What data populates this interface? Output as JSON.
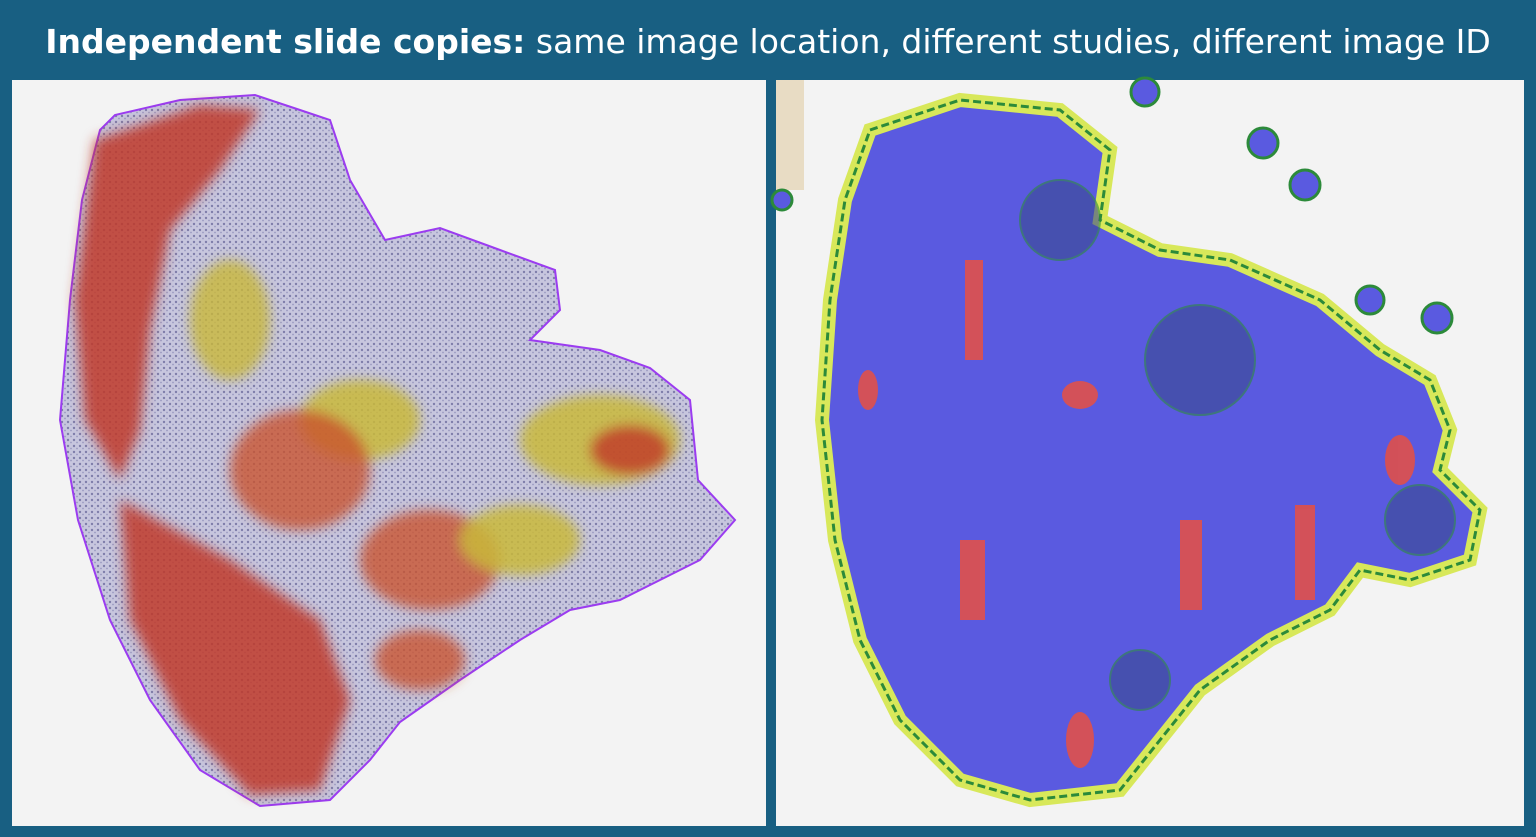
{
  "header": {
    "title_bold": "Independent slide copies:",
    "title_rest": "same image location, different studies, different image ID"
  }
}
